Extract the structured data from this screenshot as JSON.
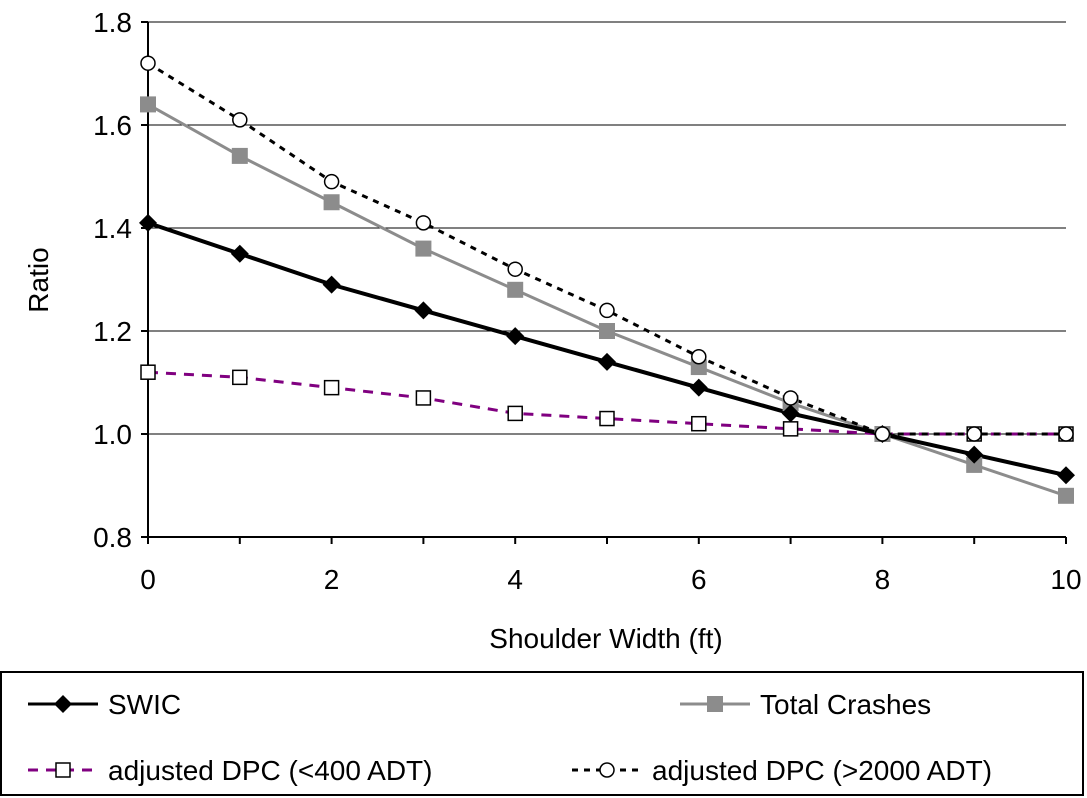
{
  "chart_data": {
    "type": "line",
    "xlabel": "Shoulder Width (ft)",
    "ylabel": "Ratio",
    "xlim": [
      0,
      10
    ],
    "ylim": [
      0.8,
      1.8
    ],
    "x_ticks": [
      "0",
      "2",
      "4",
      "6",
      "8",
      "10"
    ],
    "y_ticks": [
      "0.8",
      "1.0",
      "1.2",
      "1.4",
      "1.6",
      "1.8"
    ],
    "grid": "horizontal",
    "legend_position": "bottom",
    "x": [
      0,
      1,
      2,
      3,
      4,
      5,
      6,
      7,
      8,
      9,
      10
    ],
    "series": [
      {
        "name": "SWIC",
        "values": [
          1.41,
          1.35,
          1.29,
          1.24,
          1.19,
          1.14,
          1.09,
          1.04,
          1.0,
          0.96,
          0.92
        ],
        "color": "#000000",
        "line": "solid",
        "marker": "diamond"
      },
      {
        "name": "Total Crashes",
        "values": [
          1.64,
          1.54,
          1.45,
          1.36,
          1.28,
          1.2,
          1.13,
          1.06,
          1.0,
          0.94,
          0.88
        ],
        "color": "#8c8c8c",
        "line": "solid",
        "marker": "square"
      },
      {
        "name": "adjusted DPC (<400 ADT)",
        "values": [
          1.12,
          1.11,
          1.09,
          1.07,
          1.04,
          1.03,
          1.02,
          1.01,
          1.0,
          1.0,
          1.0
        ],
        "color": "#800080",
        "line": "dashed",
        "marker": "open-square"
      },
      {
        "name": "adjusted DPC (>2000 ADT)",
        "values": [
          1.72,
          1.61,
          1.49,
          1.41,
          1.32,
          1.24,
          1.15,
          1.07,
          1.0,
          1.0,
          1.0
        ],
        "color": "#000000",
        "line": "dotted",
        "marker": "open-circle"
      }
    ]
  }
}
